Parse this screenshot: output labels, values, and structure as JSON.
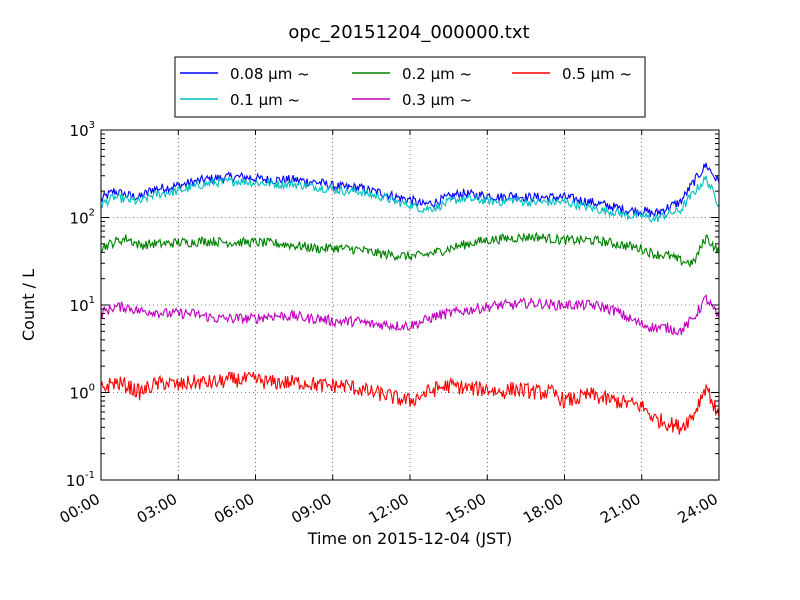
{
  "chart_data": {
    "type": "line",
    "title": "opc_20151204_000000.txt",
    "xlabel": "Time on 2015-12-04 (JST)",
    "ylabel": "Count / L",
    "xlim": [
      "00:00",
      "24:00"
    ],
    "ylim": [
      0.1,
      1000
    ],
    "yscale": "log",
    "grid": true,
    "legend_position": "top-center",
    "x_tick_labels": [
      "00:00",
      "03:00",
      "06:00",
      "09:00",
      "12:00",
      "15:00",
      "18:00",
      "21:00",
      "24:00"
    ],
    "y_tick_labels": [
      {
        "base": "10",
        "exp": "-1"
      },
      {
        "base": "10",
        "exp": "0"
      },
      {
        "base": "10",
        "exp": "1"
      },
      {
        "base": "10",
        "exp": "2"
      },
      {
        "base": "10",
        "exp": "3"
      }
    ],
    "x_hours": [
      0,
      0.5,
      1,
      1.5,
      2,
      2.5,
      3,
      3.5,
      4,
      4.5,
      5,
      5.5,
      6,
      6.5,
      7,
      7.5,
      8,
      8.5,
      9,
      9.5,
      10,
      10.5,
      11,
      11.5,
      12,
      12.5,
      13,
      13.5,
      14,
      14.5,
      15,
      15.5,
      16,
      16.5,
      17,
      17.5,
      18,
      18.5,
      19,
      19.5,
      20,
      20.5,
      21,
      21.5,
      22,
      22.5,
      23,
      23.5,
      24
    ],
    "series": [
      {
        "name": "0.08 μm ~",
        "color": "#0000ff",
        "values": [
          160,
          200,
          180,
          170,
          210,
          220,
          230,
          250,
          270,
          280,
          290,
          290,
          280,
          270,
          270,
          270,
          260,
          250,
          230,
          220,
          220,
          200,
          190,
          170,
          160,
          140,
          150,
          170,
          190,
          180,
          180,
          170,
          180,
          170,
          170,
          170,
          170,
          160,
          150,
          140,
          130,
          120,
          120,
          110,
          130,
          150,
          250,
          400,
          250
        ]
      },
      {
        "name": "0.1 μm ~",
        "color": "#00bfbf",
        "values": [
          140,
          170,
          160,
          150,
          180,
          190,
          200,
          220,
          240,
          250,
          260,
          260,
          250,
          245,
          240,
          240,
          230,
          220,
          210,
          200,
          200,
          180,
          170,
          150,
          140,
          125,
          130,
          150,
          165,
          160,
          155,
          150,
          160,
          150,
          150,
          150,
          150,
          140,
          130,
          120,
          115,
          105,
          105,
          95,
          110,
          120,
          190,
          280,
          140
        ]
      },
      {
        "name": "0.2 μm ~",
        "color": "#008000",
        "values": [
          45,
          52,
          58,
          48,
          50,
          50,
          52,
          52,
          54,
          53,
          52,
          52,
          52,
          51,
          50,
          48,
          46,
          44,
          45,
          44,
          43,
          40,
          38,
          37,
          36,
          37,
          40,
          44,
          48,
          52,
          55,
          57,
          58,
          60,
          60,
          57,
          55,
          55,
          55,
          53,
          50,
          47,
          44,
          38,
          37,
          32,
          30,
          60,
          40
        ]
      },
      {
        "name": "0.3 μm ~",
        "color": "#bf00bf",
        "values": [
          8,
          9.5,
          9.5,
          8.5,
          8.5,
          8,
          8,
          8,
          7.5,
          7,
          7,
          7,
          7,
          7.5,
          7.5,
          7.5,
          7,
          7,
          6.5,
          6.5,
          6.5,
          6,
          6,
          5.8,
          5.8,
          6.5,
          7.5,
          8,
          8.5,
          9,
          9.5,
          10,
          10,
          10.5,
          10.5,
          10,
          10,
          10,
          10,
          9.5,
          8.5,
          7,
          6,
          5.5,
          5.5,
          5,
          7,
          12,
          7
        ]
      },
      {
        "name": "0.5 μm ~",
        "color": "#ff0000",
        "values": [
          1.1,
          1.3,
          1.2,
          1.0,
          1.2,
          1.3,
          1.2,
          1.3,
          1.3,
          1.3,
          1.4,
          1.4,
          1.4,
          1.3,
          1.3,
          1.3,
          1.3,
          1.2,
          1.2,
          1.2,
          1.1,
          1.0,
          0.95,
          0.85,
          0.8,
          0.95,
          1.1,
          1.2,
          1.15,
          1.1,
          1.1,
          1.0,
          1.1,
          1.05,
          1.0,
          1.0,
          0.8,
          0.85,
          0.95,
          0.85,
          0.8,
          0.75,
          0.7,
          0.5,
          0.45,
          0.4,
          0.55,
          1.2,
          0.5
        ]
      }
    ]
  }
}
